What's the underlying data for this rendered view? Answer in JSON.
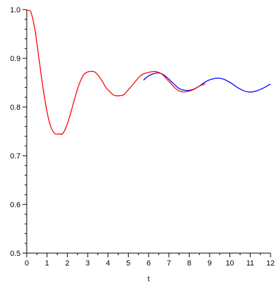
{
  "chart_data": {
    "type": "line",
    "title": "",
    "xlabel": "t",
    "ylabel": "",
    "xlim": [
      0,
      12
    ],
    "ylim": [
      0.5,
      1.0
    ],
    "grid": false,
    "legend": "none",
    "x_ticks": [
      0,
      1,
      2,
      3,
      4,
      5,
      6,
      7,
      8,
      9,
      10,
      11,
      12
    ],
    "x_tick_labels": [
      "0",
      "1",
      "2",
      "3",
      "4",
      "5",
      "6",
      "7",
      "8",
      "9",
      "10",
      "11",
      "12"
    ],
    "y_ticks": [
      0.5,
      0.6,
      0.7,
      0.8,
      0.9,
      1.0
    ],
    "y_tick_labels": [
      "0.5",
      "0.6",
      "0.7",
      "0.8",
      "0.9",
      "1.0"
    ],
    "series": [
      {
        "color": "#ff0000",
        "x": [
          0,
          0.2,
          0.4,
          0.6,
          0.8,
          1.0,
          1.2,
          1.4,
          1.6,
          1.7,
          1.8,
          2.0,
          2.2,
          2.4,
          2.6,
          2.8,
          3.0,
          3.2,
          3.35,
          3.5,
          3.7,
          3.9,
          4.1,
          4.3,
          4.5,
          4.7,
          4.8,
          4.9,
          5.1,
          5.3,
          5.5,
          5.7,
          5.9,
          6.1,
          6.3,
          6.5,
          6.7,
          6.9,
          7.1,
          7.3,
          7.5,
          7.7,
          7.9,
          8.1,
          8.3,
          8.5,
          8.8
        ],
        "y": [
          0.998,
          0.995,
          0.96,
          0.9,
          0.84,
          0.79,
          0.758,
          0.745,
          0.745,
          0.744,
          0.747,
          0.765,
          0.793,
          0.823,
          0.849,
          0.866,
          0.872,
          0.873,
          0.872,
          0.866,
          0.854,
          0.84,
          0.831,
          0.824,
          0.823,
          0.824,
          0.826,
          0.831,
          0.84,
          0.85,
          0.86,
          0.867,
          0.87,
          0.872,
          0.873,
          0.871,
          0.866,
          0.857,
          0.848,
          0.839,
          0.833,
          0.831,
          0.832,
          0.834,
          0.838,
          0.843,
          0.848
        ]
      },
      {
        "color": "#0000ff",
        "x": [
          5.75,
          5.9,
          6.1,
          6.3,
          6.5,
          6.7,
          6.9,
          7.1,
          7.3,
          7.5,
          7.7,
          7.9,
          8.1,
          8.3,
          8.5,
          8.7,
          8.9,
          9.1,
          9.3,
          9.5,
          9.7,
          9.9,
          10.1,
          10.3,
          10.5,
          10.7,
          10.9,
          11.1,
          11.3,
          11.5,
          11.7,
          11.9,
          12.0
        ],
        "y": [
          0.855,
          0.861,
          0.866,
          0.869,
          0.87,
          0.867,
          0.861,
          0.853,
          0.845,
          0.838,
          0.835,
          0.834,
          0.835,
          0.838,
          0.843,
          0.849,
          0.854,
          0.857,
          0.859,
          0.859,
          0.857,
          0.853,
          0.848,
          0.842,
          0.837,
          0.833,
          0.831,
          0.831,
          0.833,
          0.836,
          0.84,
          0.845,
          0.847
        ]
      }
    ]
  }
}
